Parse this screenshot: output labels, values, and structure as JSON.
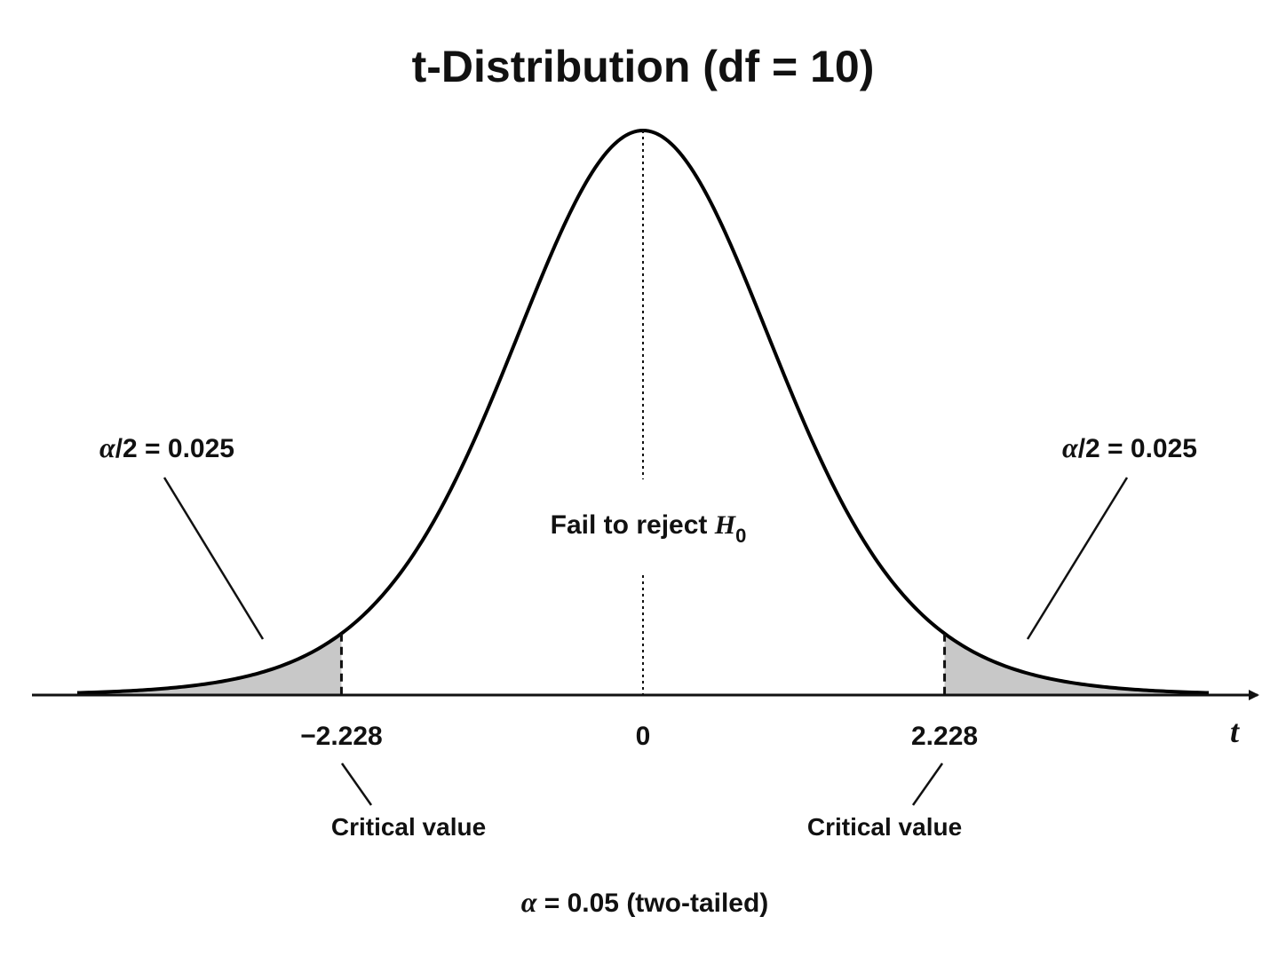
{
  "chart_data": {
    "type": "area",
    "title": "t-Distribution (df = 10)",
    "df": 10,
    "xlabel": "t",
    "xlim": [
      -4.5,
      4.5
    ],
    "x_ticks": [
      {
        "value": -2.228,
        "label": "−2.228"
      },
      {
        "value": 0,
        "label": "0"
      },
      {
        "value": 2.228,
        "label": "2.228"
      }
    ],
    "critical_values": [
      -2.228,
      2.228
    ],
    "shaded_regions": [
      {
        "from": -4.5,
        "to": -2.228,
        "label_symbol": "α",
        "label_text": "/2 = 0.025"
      },
      {
        "from": 2.228,
        "to": 4.5,
        "label_symbol": "α",
        "label_text": "/2 = 0.025"
      }
    ],
    "center_label_text": "Fail to reject ",
    "center_label_var": "H",
    "center_label_sub": "0",
    "critical_label": "Critical value",
    "footer_symbol": "α",
    "footer_text": " = 0.05 (two-tailed)",
    "colors": {
      "curve": "#000000",
      "shade": "#c8c8c8",
      "text": "#111111"
    }
  }
}
